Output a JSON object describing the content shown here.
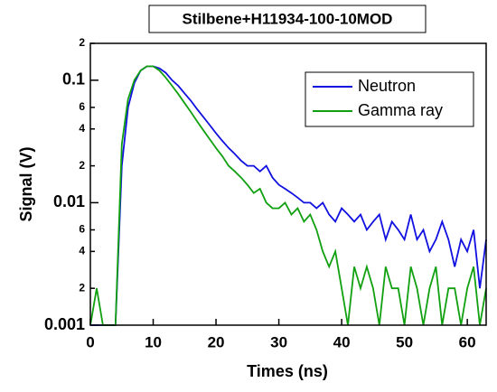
{
  "chart_data": {
    "type": "line",
    "title": "Stilbene+H11934-100-10MOD",
    "xlabel": "Times (ns)",
    "ylabel": "Signal (V)",
    "x": [
      0,
      1,
      2,
      3,
      4,
      5,
      6,
      7,
      8,
      9,
      10,
      11,
      12,
      13,
      14,
      15,
      16,
      17,
      18,
      19,
      20,
      21,
      22,
      23,
      24,
      25,
      26,
      27,
      28,
      29,
      30,
      31,
      32,
      33,
      34,
      35,
      36,
      37,
      38,
      39,
      40,
      41,
      42,
      43,
      44,
      45,
      46,
      47,
      48,
      49,
      50,
      51,
      52,
      53,
      54,
      55,
      56,
      57,
      58,
      59,
      60,
      61,
      62,
      63
    ],
    "series": [
      {
        "name": "Neutron",
        "color": "#1010e0",
        "values": [
          0.001,
          0.001,
          0.001,
          0.001,
          0.001,
          0.02,
          0.06,
          0.095,
          0.12,
          0.13,
          0.13,
          0.125,
          0.115,
          0.1,
          0.09,
          0.078,
          0.068,
          0.058,
          0.05,
          0.043,
          0.037,
          0.032,
          0.028,
          0.025,
          0.022,
          0.02,
          0.02,
          0.018,
          0.02,
          0.016,
          0.014,
          0.013,
          0.012,
          0.011,
          0.01,
          0.01,
          0.009,
          0.01,
          0.008,
          0.007,
          0.009,
          0.008,
          0.007,
          0.008,
          0.006,
          0.007,
          0.008,
          0.005,
          0.007,
          0.006,
          0.005,
          0.008,
          0.005,
          0.006,
          0.004,
          0.005,
          0.007,
          0.005,
          0.003,
          0.005,
          0.004,
          0.006,
          0.002,
          0.005
        ]
      },
      {
        "name": "Gamma ray",
        "color": "#10a010",
        "values": [
          0.001,
          0.002,
          0.001,
          0.001,
          0.001,
          0.03,
          0.07,
          0.1,
          0.12,
          0.13,
          0.13,
          0.12,
          0.105,
          0.09,
          0.077,
          0.065,
          0.055,
          0.046,
          0.039,
          0.033,
          0.028,
          0.024,
          0.02,
          0.018,
          0.016,
          0.014,
          0.012,
          0.013,
          0.01,
          0.009,
          0.009,
          0.01,
          0.008,
          0.009,
          0.007,
          0.008,
          0.006,
          0.004,
          0.003,
          0.004,
          0.002,
          0.001,
          0.003,
          0.002,
          0.003,
          0.002,
          0.001,
          0.003,
          0.002,
          0.002,
          0.001,
          0.003,
          0.002,
          0.001,
          0.002,
          0.003,
          0.001,
          0.002,
          0.002,
          0.001,
          0.002,
          0.003,
          0.001,
          0.002
        ]
      }
    ],
    "xlim": [
      0,
      63
    ],
    "xticks": [
      0,
      10,
      20,
      30,
      40,
      50,
      60
    ],
    "ylim": [
      0.001,
      0.2
    ],
    "ylog": true,
    "yticks": [
      0.001,
      {
        "value": 0.002,
        "label": "2"
      },
      {
        "value": 0.004,
        "label": "4"
      },
      {
        "value": 0.006,
        "label": "6"
      },
      0.01,
      {
        "value": 0.02,
        "label": "2"
      },
      {
        "value": 0.04,
        "label": "4"
      },
      {
        "value": 0.06,
        "label": "6"
      },
      0.1,
      {
        "value": 0.2,
        "label": "2"
      }
    ],
    "legend": "upper right"
  }
}
